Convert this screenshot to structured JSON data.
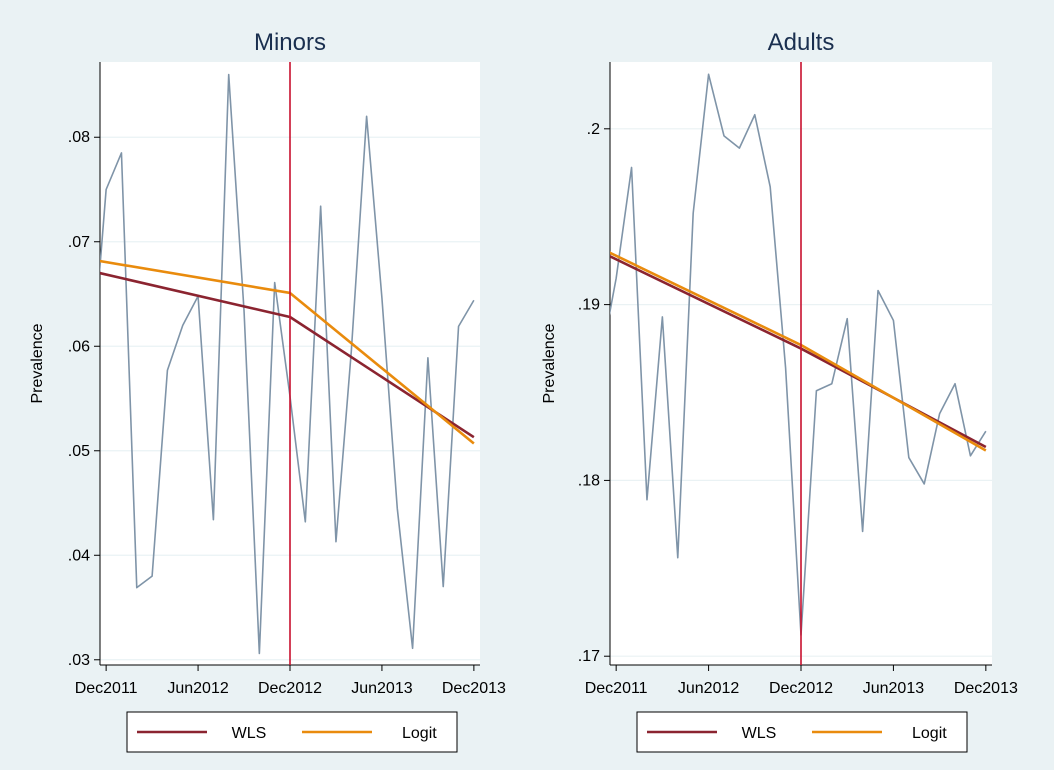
{
  "chart_data": [
    {
      "type": "line",
      "title": "Minors",
      "xlabel": "",
      "ylabel": "Prevalence",
      "ylim": [
        0.0295,
        0.0872
      ],
      "yticks": [
        ".03",
        ".04",
        ".05",
        ".06",
        ".07",
        ".08"
      ],
      "ytick_values": [
        0.03,
        0.04,
        0.05,
        0.06,
        0.07,
        0.08
      ],
      "xlim": [
        -0.4,
        24.4
      ],
      "xticks": [
        "Dec2011",
        "Jun2012",
        "Dec2012",
        "Jun2013",
        "Dec2013"
      ],
      "xtick_values": [
        0,
        6,
        12,
        18,
        24
      ],
      "intervention_x": 12,
      "legend": [
        "WLS",
        "Logit"
      ],
      "legend_position": "bottom",
      "grid": true,
      "series": [
        {
          "name": "",
          "color": "#7f94a8",
          "x": [
            -1,
            0,
            1,
            2,
            3,
            4,
            5,
            6,
            7,
            8,
            9,
            10,
            11,
            12,
            13,
            14,
            15,
            16,
            17,
            18,
            19,
            20,
            21,
            22,
            23,
            24
          ],
          "values": [
            0.0567,
            0.075,
            0.0785,
            0.0369,
            0.038,
            0.0577,
            0.062,
            0.0648,
            0.0434,
            0.086,
            0.0634,
            0.0306,
            0.0661,
            0.0552,
            0.0432,
            0.0734,
            0.0413,
            0.0595,
            0.082,
            0.0646,
            0.0445,
            0.0311,
            0.0589,
            0.037,
            0.0619,
            0.0644
          ]
        },
        {
          "name": "WLS",
          "color": "#8b2430",
          "x": [
            -1,
            12,
            12,
            24
          ],
          "values": [
            0.0672,
            0.0628,
            0.0628,
            0.0513
          ]
        },
        {
          "name": "Logit",
          "color": "#e98b0d",
          "x": [
            -1,
            12,
            12,
            24
          ],
          "values": [
            0.0683,
            0.0651,
            0.0651,
            0.0507
          ]
        }
      ]
    },
    {
      "type": "line",
      "title": "Adults",
      "xlabel": "",
      "ylabel": "Prevalence",
      "ylim": [
        0.1695,
        0.2038
      ],
      "yticks": [
        ".17",
        ".18",
        ".19",
        ".2"
      ],
      "ytick_values": [
        0.17,
        0.18,
        0.19,
        0.2
      ],
      "xlim": [
        -0.4,
        24.4
      ],
      "xticks": [
        "Dec2011",
        "Jun2012",
        "Dec2012",
        "Jun2013",
        "Dec2013"
      ],
      "xtick_values": [
        0,
        6,
        12,
        18,
        24
      ],
      "intervention_x": 12,
      "legend": [
        "WLS",
        "Logit"
      ],
      "legend_position": "bottom",
      "grid": true,
      "series": [
        {
          "name": "",
          "color": "#7f94a8",
          "x": [
            -1,
            0,
            1,
            2,
            3,
            4,
            5,
            6,
            7,
            8,
            9,
            10,
            11,
            12,
            13,
            14,
            15,
            16,
            17,
            18,
            19,
            20,
            21,
            22,
            23,
            24
          ],
          "values": [
            0.1868,
            0.1915,
            0.1978,
            0.1789,
            0.1893,
            0.1756,
            0.1952,
            0.2031,
            0.1996,
            0.1989,
            0.2008,
            0.1967,
            0.1864,
            0.1712,
            0.1851,
            0.1855,
            0.1892,
            0.1771,
            0.1908,
            0.1891,
            0.1813,
            0.1798,
            0.1838,
            0.1855,
            0.1814,
            0.1828
          ]
        },
        {
          "name": "WLS",
          "color": "#8b2430",
          "x": [
            -1,
            12,
            12,
            24
          ],
          "values": [
            0.193,
            0.1875,
            0.1875,
            0.1819
          ]
        },
        {
          "name": "Logit",
          "color": "#e98b0d",
          "x": [
            -1,
            12,
            12,
            24
          ],
          "values": [
            0.1932,
            0.1877,
            0.1877,
            0.1817
          ]
        }
      ]
    }
  ]
}
